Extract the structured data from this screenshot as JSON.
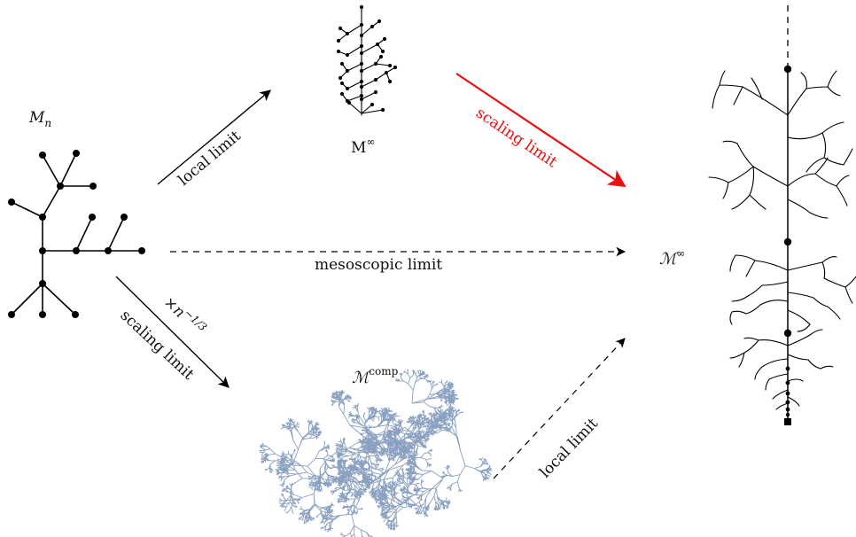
{
  "labels": {
    "tree_label_main": "M",
    "tree_label_sub": "n",
    "local_infinite": "M",
    "local_infinite_sup": "∞",
    "limit_tree": "ℳ",
    "limit_tree_sup": "∞",
    "compact_tree": "ℳ",
    "compact_tree_sup": "comp"
  },
  "arrows": {
    "local_limit_top": "local limit",
    "scaling_limit_top": "scaling limit",
    "mesoscopic": "mesoscopic limit",
    "scaling_limit_bottom": "scaling limit",
    "rescale_main": "×n",
    "rescale_exp": "−1/3",
    "local_limit_bottom": "local limit"
  },
  "colors": {
    "ink": "#000000",
    "highlight": "#e8110f",
    "cloud": "#8aa0c0"
  }
}
